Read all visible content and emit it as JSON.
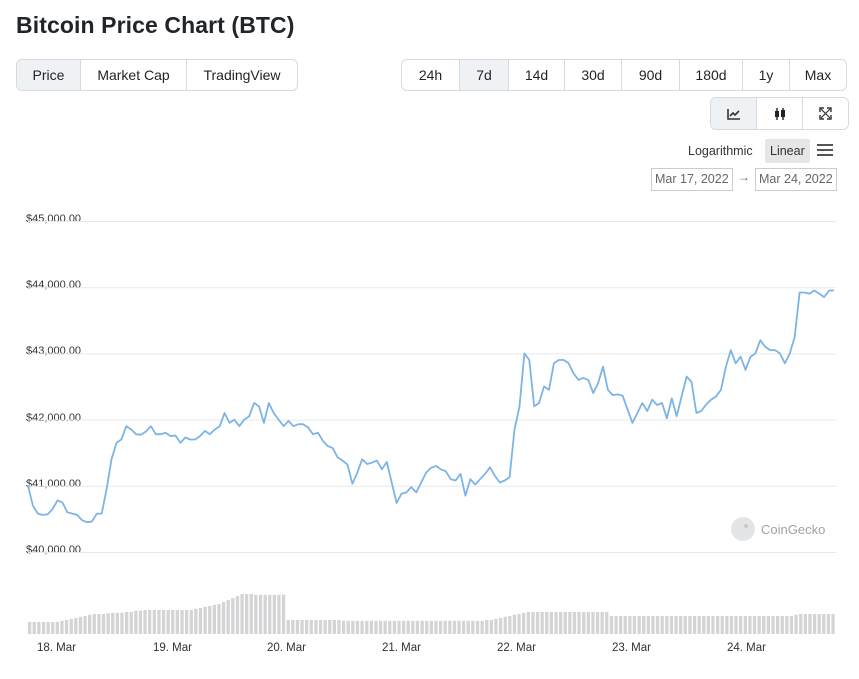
{
  "page": {
    "title": "Bitcoin Price Chart (BTC)"
  },
  "metric_tabs": [
    "Price",
    "Market Cap",
    "TradingView"
  ],
  "metric_active": "Price",
  "range_tabs": [
    "24h",
    "7d",
    "14d",
    "30d",
    "90d",
    "180d",
    "1y",
    "Max"
  ],
  "range_active": "7d",
  "view_buttons": [
    {
      "icon": "line-chart-icon",
      "active": true
    },
    {
      "icon": "candlestick-icon",
      "active": false
    },
    {
      "icon": "expand-icon",
      "active": false
    }
  ],
  "scale": {
    "log_label": "Logarithmic",
    "linear_label": "Linear",
    "active": "Linear"
  },
  "date_range": {
    "from": "Mar 17, 2022",
    "arrow": "→",
    "to": "Mar 24, 2022"
  },
  "watermark": {
    "text": "CoinGecko"
  },
  "colors": {
    "line": "#7db4e6",
    "volume": "#d4d4d6",
    "grid": "#e9e9e9",
    "active_tab": "#eff2f5"
  },
  "chart_data": {
    "type": "line",
    "title": "",
    "y_tick_labels": [
      "$40,000.00",
      "$41,000.00",
      "$42,000.00",
      "$43,000.00",
      "$44,000.00",
      "$45,000.00"
    ],
    "y_ticks": [
      40000,
      41000,
      42000,
      43000,
      44000,
      45000
    ],
    "ylim": [
      40000,
      45000
    ],
    "x_tick_labels": [
      "18. Mar",
      "19. Mar",
      "20. Mar",
      "21. Mar",
      "22. Mar",
      "23. Mar",
      "24. Mar"
    ],
    "grid": true,
    "series": [
      {
        "values": [
          41000,
          40700,
          40580,
          40560,
          40570,
          40650,
          40780,
          40750,
          40600,
          40580,
          40560,
          40480,
          40450,
          40460,
          40580,
          40580,
          40950,
          41400,
          41650,
          41700,
          41900,
          41850,
          41780,
          41770,
          41820,
          41900,
          41780,
          41780,
          41800,
          41750,
          41760,
          41650,
          41730,
          41700,
          41700,
          41750,
          41830,
          41780,
          41850,
          41900,
          42100,
          41950,
          42000,
          41900,
          42000,
          42050,
          42250,
          42200,
          41950,
          42250,
          42100,
          42000,
          41900,
          41980,
          41900,
          41930,
          41930,
          41880,
          41780,
          41800,
          41680,
          41600,
          41570,
          41430,
          41380,
          41320,
          41030,
          41200,
          41400,
          41330,
          41350,
          41380,
          41250,
          41360,
          41050,
          40740,
          40880,
          40900,
          40980,
          40900,
          41050,
          41200,
          41270,
          41300,
          41250,
          41220,
          41100,
          41080,
          41180,
          40850,
          41100,
          41020,
          41100,
          41180,
          41280,
          41150,
          41050,
          41080,
          41130,
          41850,
          42200,
          43000,
          42900,
          42200,
          42250,
          42500,
          42450,
          42850,
          42900,
          42900,
          42850,
          42700,
          42600,
          42630,
          42600,
          42400,
          42550,
          42800,
          42450,
          42370,
          42380,
          42360,
          42150,
          41950,
          42100,
          42250,
          42130,
          42300,
          42220,
          42250,
          42020,
          42320,
          42050,
          42350,
          42650,
          42570,
          42100,
          42130,
          42230,
          42300,
          42350,
          42450,
          42800,
          43050,
          42850,
          42950,
          42750,
          42950,
          43000,
          43200,
          43100,
          43050,
          43050,
          43000,
          42850,
          43000,
          43250,
          43920,
          43920,
          43900,
          43950,
          43900,
          43850,
          43950,
          43950
        ]
      }
    ],
    "volume": [
      0.3,
      0.3,
      0.3,
      0.3,
      0.3,
      0.3,
      0.3,
      0.33,
      0.35,
      0.38,
      0.4,
      0.43,
      0.45,
      0.48,
      0.5,
      0.5,
      0.5,
      0.52,
      0.53,
      0.53,
      0.53,
      0.55,
      0.55,
      0.58,
      0.58,
      0.6,
      0.6,
      0.6,
      0.6,
      0.6,
      0.6,
      0.6,
      0.6,
      0.6,
      0.6,
      0.6,
      0.63,
      0.65,
      0.68,
      0.7,
      0.73,
      0.75,
      0.8,
      0.85,
      0.9,
      0.95,
      1.0,
      1.0,
      1.0,
      0.98,
      0.98,
      0.98,
      0.98,
      0.98,
      0.98,
      0.98,
      0.35,
      0.35,
      0.35,
      0.35,
      0.35,
      0.35,
      0.35,
      0.35,
      0.35,
      0.35,
      0.35,
      0.35,
      0.33,
      0.33,
      0.33,
      0.33,
      0.33,
      0.33,
      0.33,
      0.33,
      0.33,
      0.33,
      0.33,
      0.33,
      0.33,
      0.33,
      0.33,
      0.33,
      0.33,
      0.33,
      0.33,
      0.33,
      0.33,
      0.33,
      0.33,
      0.33,
      0.33,
      0.33,
      0.33,
      0.33,
      0.33,
      0.33,
      0.33,
      0.35,
      0.35,
      0.38,
      0.4,
      0.43,
      0.45,
      0.48,
      0.5,
      0.53,
      0.55,
      0.55,
      0.55,
      0.55,
      0.55,
      0.55,
      0.55,
      0.55,
      0.55,
      0.55,
      0.55,
      0.55,
      0.55,
      0.55,
      0.55,
      0.55,
      0.55,
      0.55,
      0.45,
      0.45,
      0.45,
      0.45,
      0.45,
      0.45,
      0.45,
      0.45,
      0.45,
      0.45,
      0.45,
      0.45,
      0.45,
      0.45,
      0.45,
      0.45,
      0.45,
      0.45,
      0.45,
      0.45,
      0.45,
      0.45,
      0.45,
      0.45,
      0.45,
      0.45,
      0.45,
      0.45,
      0.45,
      0.45,
      0.45,
      0.45,
      0.45,
      0.45,
      0.45,
      0.45,
      0.45,
      0.45,
      0.45,
      0.45,
      0.48,
      0.5,
      0.5,
      0.5,
      0.5,
      0.5,
      0.5,
      0.5,
      0.5
    ]
  }
}
